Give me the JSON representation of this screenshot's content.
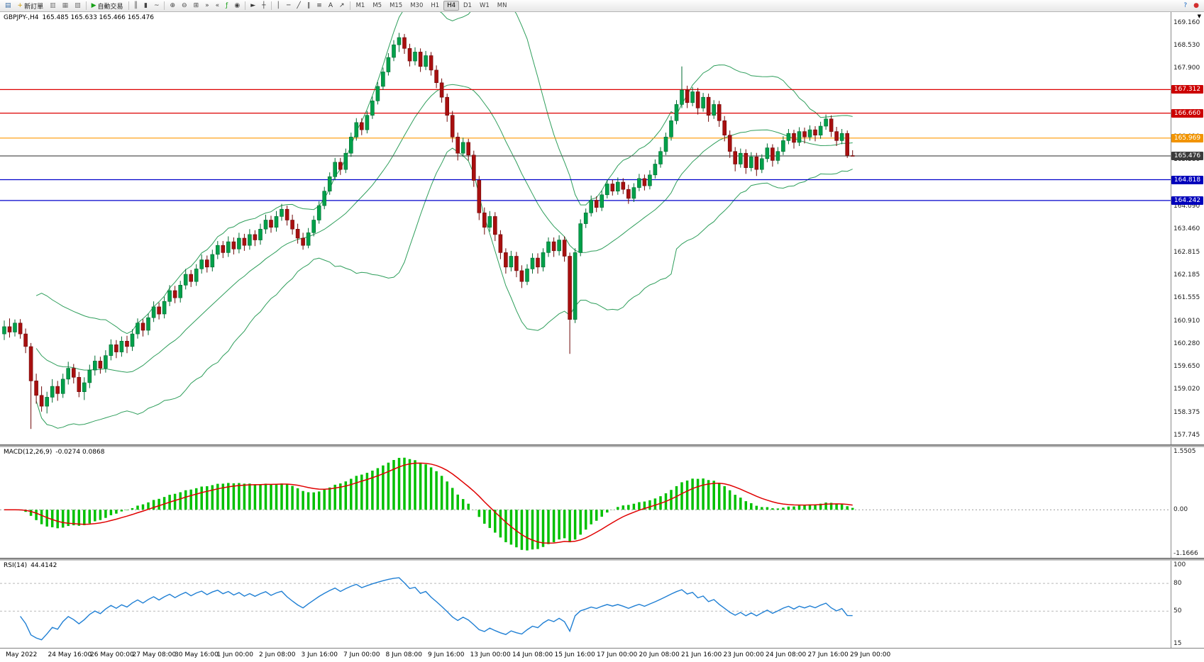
{
  "toolbar": {
    "new_order_label": "新訂單",
    "auto_trading_label": "自動交易",
    "timeframes": [
      "M1",
      "M5",
      "M15",
      "M30",
      "H1",
      "H4",
      "D1",
      "W1",
      "MN"
    ],
    "active_timeframe": "H4",
    "items": [
      {
        "type": "btn",
        "name": "charts-button",
        "glyph": "▤",
        "color": "#3b6ea5"
      },
      {
        "type": "btn",
        "name": "new-order-button",
        "glyph": "+",
        "color": "#c99700",
        "label": "新訂單"
      },
      {
        "type": "btn",
        "name": "market-watch-button",
        "glyph": "▥",
        "color": "#777777"
      },
      {
        "type": "btn",
        "name": "data-window-button",
        "glyph": "▦",
        "color": "#777777"
      },
      {
        "type": "btn",
        "name": "navigator-button",
        "glyph": "▧",
        "color": "#777777"
      },
      {
        "type": "sep"
      },
      {
        "type": "btn",
        "name": "auto-trading-button",
        "glyph": "▶",
        "color": "#18a018",
        "label": "自動交易"
      },
      {
        "type": "sep"
      },
      {
        "type": "btn",
        "name": "bars-chart-button",
        "glyph": "║",
        "color": "#444444"
      },
      {
        "type": "btn",
        "name": "candlestick-chart-button",
        "glyph": "▮",
        "color": "#444444"
      },
      {
        "type": "btn",
        "name": "line-chart-button",
        "glyph": "~",
        "color": "#444444"
      },
      {
        "type": "sep"
      },
      {
        "type": "btn",
        "name": "zoom-in-button",
        "glyph": "⊕",
        "color": "#444444"
      },
      {
        "type": "btn",
        "name": "zoom-out-button",
        "glyph": "⊖",
        "color": "#444444"
      },
      {
        "type": "btn",
        "name": "tile-windows-button",
        "glyph": "⊞",
        "color": "#444444"
      },
      {
        "type": "btn",
        "name": "auto-scroll-button",
        "glyph": "»",
        "color": "#444444"
      },
      {
        "type": "btn",
        "name": "chart-shift-button",
        "glyph": "«",
        "color": "#444444"
      },
      {
        "type": "btn",
        "name": "indicators-button",
        "glyph": "ƒ",
        "color": "#18a018"
      },
      {
        "type": "btn",
        "name": "periods-button",
        "glyph": "◉",
        "color": "#444444"
      },
      {
        "type": "sep"
      },
      {
        "type": "btn",
        "name": "cursor-button",
        "glyph": "►",
        "color": "#333333"
      },
      {
        "type": "btn",
        "name": "crosshair-button",
        "glyph": "┼",
        "color": "#333333"
      },
      {
        "type": "sep"
      },
      {
        "type": "btn",
        "name": "vertical-line-button",
        "glyph": "│",
        "color": "#333333"
      },
      {
        "type": "btn",
        "name": "horizontal-line-button",
        "glyph": "─",
        "color": "#333333"
      },
      {
        "type": "btn",
        "name": "trendline-button",
        "glyph": "╱",
        "color": "#333333"
      },
      {
        "type": "btn",
        "name": "channel-button",
        "glyph": "∥",
        "color": "#333333"
      },
      {
        "type": "btn",
        "name": "fibonacci-button",
        "glyph": "≡",
        "color": "#333333"
      },
      {
        "type": "btn",
        "name": "text-button",
        "glyph": "A",
        "color": "#333333"
      },
      {
        "type": "btn",
        "name": "arrows-button",
        "glyph": "↗",
        "color": "#333333"
      },
      {
        "type": "sep"
      },
      {
        "type": "timeframes"
      },
      {
        "type": "spacer"
      },
      {
        "type": "btn",
        "name": "help-button",
        "glyph": "?",
        "color": "#1565c0"
      },
      {
        "type": "btn",
        "name": "record-button",
        "glyph": "●",
        "color": "#d32f2f"
      }
    ]
  },
  "chart": {
    "symbol_label": "GBPJPY-,H4",
    "ohlc_label": "165.485 165.633 165.466 165.476",
    "scale_marker": "▼",
    "price_axis": [
      "169.160",
      "168.530",
      "167.900",
      "167.270",
      "166.640",
      "166.010",
      "165.380",
      "164.750",
      "164.090",
      "163.460",
      "162.815",
      "162.185",
      "161.555",
      "160.910",
      "160.280",
      "159.650",
      "159.020",
      "158.375",
      "157.745"
    ],
    "levels": [
      {
        "value": 167.312,
        "label": "167.312",
        "color": "#dd0000",
        "badge": "#cc0000"
      },
      {
        "value": 166.66,
        "label": "166.660",
        "color": "#dd0000",
        "badge": "#cc0000"
      },
      {
        "value": 165.969,
        "label": "165.969",
        "color": "#ff9900",
        "badge": "#f29400"
      },
      {
        "value": 165.476,
        "label": "165.476",
        "color": "#555555",
        "badge": "#3c3c3c"
      },
      {
        "value": 164.818,
        "label": "164.818",
        "color": "#0000cc",
        "badge": "#0000bb"
      },
      {
        "value": 164.242,
        "label": "164.242",
        "color": "#0000cc",
        "badge": "#0000bb"
      }
    ]
  },
  "chart_data": {
    "type": "candlestick",
    "symbol": "GBPJPY",
    "timeframe": "H4",
    "y_axis_range": [
      157.745,
      169.16
    ],
    "x_labels": [
      "May 2022",
      "24 May 16:00",
      "26 May 00:00",
      "27 May 08:00",
      "30 May 16:00",
      "1 Jun 00:00",
      "2 Jun 08:00",
      "3 Jun 16:00",
      "7 Jun 00:00",
      "8 Jun 08:00",
      "9 Jun 16:00",
      "13 Jun 00:00",
      "14 Jun 08:00",
      "15 Jun 16:00",
      "17 Jun 00:00",
      "20 Jun 08:00",
      "21 Jun 16:00",
      "23 Jun 00:00",
      "24 Jun 08:00",
      "27 Jun 16:00",
      "29 Jun 00:00"
    ],
    "candles": [
      [
        160.55,
        160.92,
        160.38,
        160.75
      ],
      [
        160.75,
        160.98,
        160.45,
        160.6
      ],
      [
        160.6,
        160.95,
        160.48,
        160.85
      ],
      [
        160.85,
        160.96,
        160.42,
        160.55
      ],
      [
        160.55,
        160.7,
        160.02,
        160.2
      ],
      [
        160.2,
        160.3,
        157.92,
        159.25
      ],
      [
        159.25,
        159.45,
        158.62,
        158.85
      ],
      [
        158.85,
        159.1,
        158.4,
        158.55
      ],
      [
        158.55,
        158.95,
        158.35,
        158.8
      ],
      [
        158.8,
        159.3,
        158.65,
        159.1
      ],
      [
        159.1,
        159.25,
        158.7,
        158.9
      ],
      [
        158.9,
        159.45,
        158.78,
        159.3
      ],
      [
        159.3,
        159.78,
        159.15,
        159.6
      ],
      [
        159.6,
        159.72,
        159.18,
        159.35
      ],
      [
        159.35,
        159.5,
        158.8,
        158.95
      ],
      [
        158.95,
        159.35,
        158.72,
        159.2
      ],
      [
        159.2,
        159.7,
        159.05,
        159.55
      ],
      [
        159.55,
        159.95,
        159.4,
        159.8
      ],
      [
        159.8,
        159.92,
        159.45,
        159.6
      ],
      [
        159.6,
        160.1,
        159.48,
        159.95
      ],
      [
        159.95,
        160.4,
        159.82,
        160.25
      ],
      [
        160.25,
        160.38,
        159.88,
        160.05
      ],
      [
        160.05,
        160.48,
        159.92,
        160.35
      ],
      [
        160.35,
        160.5,
        160.02,
        160.2
      ],
      [
        160.2,
        160.68,
        160.08,
        160.55
      ],
      [
        160.55,
        160.98,
        160.42,
        160.85
      ],
      [
        160.85,
        160.96,
        160.48,
        160.65
      ],
      [
        160.65,
        161.12,
        160.52,
        161.0
      ],
      [
        161.0,
        161.45,
        160.88,
        161.3
      ],
      [
        161.3,
        161.42,
        160.95,
        161.1
      ],
      [
        161.1,
        161.58,
        160.98,
        161.45
      ],
      [
        161.45,
        161.9,
        161.32,
        161.75
      ],
      [
        161.75,
        161.88,
        161.4,
        161.55
      ],
      [
        161.55,
        162.02,
        161.42,
        161.9
      ],
      [
        161.9,
        162.35,
        161.78,
        162.2
      ],
      [
        162.2,
        162.32,
        161.85,
        162.0
      ],
      [
        162.0,
        162.48,
        161.88,
        162.35
      ],
      [
        162.35,
        162.75,
        162.22,
        162.6
      ],
      [
        162.6,
        162.72,
        162.25,
        162.4
      ],
      [
        162.4,
        162.88,
        162.28,
        162.75
      ],
      [
        162.75,
        163.12,
        162.62,
        163.0
      ],
      [
        163.0,
        163.12,
        162.65,
        162.8
      ],
      [
        162.8,
        163.25,
        162.68,
        163.1
      ],
      [
        163.1,
        163.22,
        162.75,
        162.9
      ],
      [
        162.9,
        163.35,
        162.78,
        163.2
      ],
      [
        163.2,
        163.32,
        162.85,
        163.0
      ],
      [
        163.0,
        163.45,
        162.88,
        163.3
      ],
      [
        163.3,
        163.42,
        162.98,
        163.15
      ],
      [
        163.15,
        163.6,
        163.02,
        163.45
      ],
      [
        163.45,
        163.85,
        163.32,
        163.7
      ],
      [
        163.7,
        163.82,
        163.35,
        163.5
      ],
      [
        163.5,
        163.95,
        163.38,
        163.8
      ],
      [
        163.8,
        164.15,
        163.68,
        164.0
      ],
      [
        164.0,
        164.1,
        163.55,
        163.7
      ],
      [
        163.7,
        163.85,
        163.3,
        163.45
      ],
      [
        163.45,
        163.6,
        163.05,
        163.2
      ],
      [
        163.2,
        163.35,
        162.88,
        163.0
      ],
      [
        163.0,
        163.48,
        162.92,
        163.35
      ],
      [
        163.35,
        163.82,
        163.25,
        163.7
      ],
      [
        163.7,
        164.22,
        163.6,
        164.1
      ],
      [
        164.1,
        164.62,
        164.0,
        164.5
      ],
      [
        164.5,
        165.02,
        164.4,
        164.9
      ],
      [
        164.9,
        165.42,
        164.8,
        165.3
      ],
      [
        165.3,
        165.42,
        164.95,
        165.1
      ],
      [
        165.1,
        165.68,
        165.0,
        165.55
      ],
      [
        165.55,
        166.12,
        165.45,
        166.0
      ],
      [
        166.0,
        166.52,
        165.9,
        166.4
      ],
      [
        166.4,
        166.52,
        166.05,
        166.2
      ],
      [
        166.2,
        166.72,
        166.1,
        166.6
      ],
      [
        166.6,
        167.12,
        166.5,
        167.0
      ],
      [
        167.0,
        167.52,
        166.9,
        167.4
      ],
      [
        167.4,
        167.92,
        167.3,
        167.8
      ],
      [
        167.8,
        168.32,
        167.7,
        168.2
      ],
      [
        168.2,
        168.68,
        168.1,
        168.55
      ],
      [
        168.55,
        168.88,
        168.35,
        168.75
      ],
      [
        168.75,
        168.85,
        168.3,
        168.45
      ],
      [
        168.45,
        168.58,
        167.95,
        168.1
      ],
      [
        168.1,
        168.48,
        167.98,
        168.35
      ],
      [
        168.35,
        168.45,
        167.8,
        167.95
      ],
      [
        167.95,
        168.38,
        167.85,
        168.25
      ],
      [
        168.25,
        168.35,
        167.7,
        167.85
      ],
      [
        167.85,
        167.98,
        167.35,
        167.5
      ],
      [
        167.5,
        167.62,
        166.95,
        167.1
      ],
      [
        167.1,
        167.2,
        166.42,
        166.6
      ],
      [
        166.6,
        166.72,
        165.85,
        166.0
      ],
      [
        166.0,
        166.12,
        165.35,
        165.55
      ],
      [
        165.55,
        165.98,
        165.45,
        165.85
      ],
      [
        165.85,
        165.95,
        165.35,
        165.5
      ],
      [
        165.5,
        165.62,
        164.62,
        164.8
      ],
      [
        164.8,
        164.92,
        163.7,
        163.9
      ],
      [
        163.9,
        164.05,
        163.3,
        163.5
      ],
      [
        163.5,
        163.95,
        163.38,
        163.8
      ],
      [
        163.8,
        163.92,
        163.12,
        163.3
      ],
      [
        163.3,
        163.42,
        162.62,
        162.8
      ],
      [
        162.8,
        162.92,
        162.22,
        162.4
      ],
      [
        162.4,
        162.85,
        162.28,
        162.7
      ],
      [
        162.7,
        162.82,
        162.12,
        162.3
      ],
      [
        162.3,
        162.45,
        161.82,
        162.0
      ],
      [
        162.0,
        162.48,
        161.9,
        162.35
      ],
      [
        162.35,
        162.78,
        162.22,
        162.65
      ],
      [
        162.65,
        162.78,
        162.22,
        162.4
      ],
      [
        162.4,
        162.92,
        162.28,
        162.8
      ],
      [
        162.8,
        163.22,
        162.68,
        163.1
      ],
      [
        163.1,
        163.22,
        162.68,
        162.85
      ],
      [
        162.85,
        163.28,
        162.72,
        163.15
      ],
      [
        163.15,
        163.25,
        162.55,
        162.7
      ],
      [
        162.7,
        162.8,
        160.0,
        160.95
      ],
      [
        160.95,
        162.92,
        160.85,
        162.8
      ],
      [
        162.8,
        163.72,
        162.7,
        163.6
      ],
      [
        163.6,
        164.02,
        163.48,
        163.9
      ],
      [
        163.9,
        164.38,
        163.8,
        164.25
      ],
      [
        164.25,
        164.36,
        163.92,
        164.05
      ],
      [
        164.05,
        164.52,
        163.95,
        164.4
      ],
      [
        164.4,
        164.82,
        164.3,
        164.7
      ],
      [
        164.7,
        164.82,
        164.38,
        164.5
      ],
      [
        164.5,
        164.88,
        164.4,
        164.75
      ],
      [
        164.75,
        164.86,
        164.42,
        164.55
      ],
      [
        164.55,
        164.68,
        164.15,
        164.3
      ],
      [
        164.3,
        164.72,
        164.2,
        164.6
      ],
      [
        164.6,
        164.98,
        164.5,
        164.85
      ],
      [
        164.85,
        164.96,
        164.52,
        164.65
      ],
      [
        164.65,
        165.08,
        164.55,
        164.95
      ],
      [
        164.95,
        165.38,
        164.85,
        165.25
      ],
      [
        165.25,
        165.72,
        165.15,
        165.6
      ],
      [
        165.6,
        166.12,
        165.5,
        166.0
      ],
      [
        166.0,
        166.58,
        165.9,
        166.45
      ],
      [
        166.45,
        167.02,
        166.35,
        166.9
      ],
      [
        166.9,
        167.95,
        166.8,
        167.3
      ],
      [
        167.3,
        167.42,
        166.8,
        166.95
      ],
      [
        166.95,
        167.38,
        166.85,
        167.25
      ],
      [
        167.25,
        167.36,
        166.62,
        166.8
      ],
      [
        166.8,
        167.22,
        166.7,
        167.1
      ],
      [
        167.1,
        167.2,
        166.42,
        166.6
      ],
      [
        166.6,
        167.02,
        166.5,
        166.9
      ],
      [
        166.9,
        167.0,
        166.28,
        166.45
      ],
      [
        166.45,
        166.58,
        165.88,
        166.05
      ],
      [
        166.05,
        166.18,
        165.42,
        165.6
      ],
      [
        165.6,
        165.72,
        165.05,
        165.25
      ],
      [
        165.25,
        165.68,
        165.15,
        165.55
      ],
      [
        165.55,
        165.66,
        164.98,
        165.15
      ],
      [
        165.15,
        165.58,
        165.05,
        165.45
      ],
      [
        165.45,
        165.56,
        164.92,
        165.1
      ],
      [
        165.1,
        165.52,
        165.0,
        165.4
      ],
      [
        165.4,
        165.82,
        165.3,
        165.7
      ],
      [
        165.7,
        165.8,
        165.18,
        165.35
      ],
      [
        165.35,
        165.72,
        165.25,
        165.6
      ],
      [
        165.6,
        166.02,
        165.5,
        165.9
      ],
      [
        165.9,
        166.22,
        165.8,
        166.1
      ],
      [
        166.1,
        166.2,
        165.68,
        165.85
      ],
      [
        165.85,
        166.27,
        165.75,
        166.15
      ],
      [
        166.15,
        166.26,
        165.82,
        166.0
      ],
      [
        166.0,
        166.32,
        165.9,
        166.2
      ],
      [
        166.2,
        166.3,
        165.88,
        166.05
      ],
      [
        166.05,
        166.42,
        165.95,
        166.3
      ],
      [
        166.3,
        166.62,
        166.2,
        166.5
      ],
      [
        166.5,
        166.6,
        166.0,
        166.15
      ],
      [
        166.15,
        166.28,
        165.75,
        165.9
      ],
      [
        165.9,
        166.22,
        165.8,
        166.1
      ],
      [
        166.1,
        166.18,
        165.42,
        165.49
      ],
      [
        165.485,
        165.633,
        165.466,
        165.476
      ]
    ],
    "indicators": {
      "bollinger": {
        "period": 20,
        "deviation": 2
      },
      "macd": {
        "label": "MACD(12,26,9)",
        "values_label": "-0.0274 0.0868",
        "params": [
          12,
          26,
          9
        ],
        "axis": [
          "1.5505",
          "0.00",
          "-1.1666"
        ],
        "y_max": 1.5505,
        "y_min": -1.1666
      },
      "rsi": {
        "label": "RSI(14)",
        "value_label": "44.4142",
        "period": 14,
        "axis": [
          "100",
          "80",
          "50",
          "15"
        ],
        "y_max": 100,
        "y_min": 15,
        "levels": [
          80,
          50
        ]
      }
    }
  },
  "colors": {
    "candle_up": "#00a04a",
    "candle_up_border": "#006b31",
    "candle_down": "#a80f0f",
    "candle_down_border": "#6f0808",
    "bollinger": "#2e9e5b",
    "macd_hist": "#00c000",
    "macd_signal": "#e00000",
    "macd_zero": "#999999",
    "rsi": "#1f7fd4",
    "rsi_level": "#b9b9b9"
  }
}
